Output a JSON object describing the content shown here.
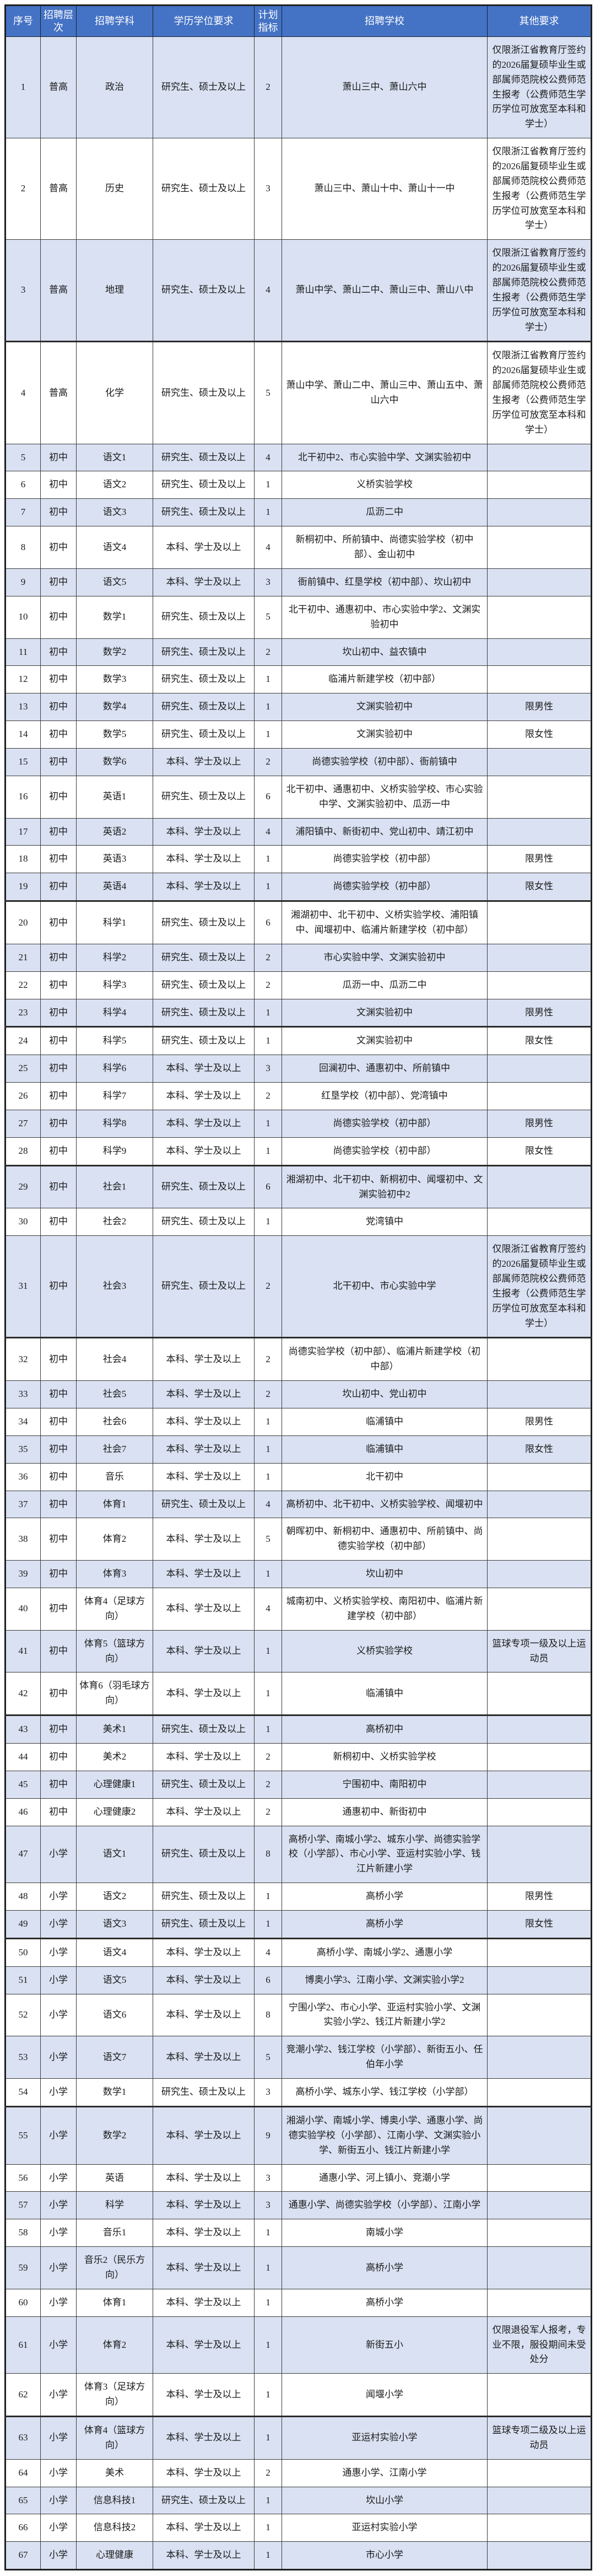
{
  "colors": {
    "header_bg": "#4472C4",
    "band_bg": "#D9E1F2"
  },
  "table": {
    "headers": [
      "序号",
      "招聘层次",
      "招聘学科",
      "学历学位要求",
      "计划指标",
      "招聘学校",
      "其他要求"
    ],
    "note_gongfei": "仅限浙江省教育厅签约的2026届复硕毕业生或部属师范院校公费师范生报考（公费师范生学历学位可放宽至本科和学士）",
    "rows": [
      {
        "no": "1",
        "level": "普高",
        "subject": "政治",
        "degree": "研究生、硕士及以上",
        "quota": "2",
        "schools": "萧山三中、萧山六中",
        "other": "仅限浙江省教育厅签约的2026届复硕毕业生或部属师范院校公费师范生报考（公费师范生学历学位可放宽至本科和学士）"
      },
      {
        "no": "2",
        "level": "普高",
        "subject": "历史",
        "degree": "研究生、硕士及以上",
        "quota": "3",
        "schools": "萧山三中、萧山十中、萧山十一中",
        "other": "仅限浙江省教育厅签约的2026届复硕毕业生或部属师范院校公费师范生报考（公费师范生学历学位可放宽至本科和学士）"
      },
      {
        "no": "3",
        "level": "普高",
        "subject": "地理",
        "degree": "研究生、硕士及以上",
        "quota": "4",
        "schools": "萧山中学、萧山二中、萧山三中、萧山八中",
        "other": "仅限浙江省教育厅签约的2026届复硕毕业生或部属师范院校公费师范生报考（公费师范生学历学位可放宽至本科和学士）"
      },
      {
        "no": "4",
        "level": "普高",
        "subject": "化学",
        "degree": "研究生、硕士及以上",
        "quota": "5",
        "schools": "萧山中学、萧山二中、萧山三中、萧山五中、萧山六中",
        "other": "仅限浙江省教育厅签约的2026届复硕毕业生或部属师范院校公费师范生报考（公费师范生学历学位可放宽至本科和学士）"
      },
      {
        "no": "5",
        "level": "初中",
        "subject": "语文1",
        "degree": "研究生、硕士及以上",
        "quota": "4",
        "schools": "北干初中2、市心实验中学、文渊实验初中",
        "other": ""
      },
      {
        "no": "6",
        "level": "初中",
        "subject": "语文2",
        "degree": "研究生、硕士及以上",
        "quota": "1",
        "schools": "义桥实验学校",
        "other": ""
      },
      {
        "no": "7",
        "level": "初中",
        "subject": "语文3",
        "degree": "研究生、硕士及以上",
        "quota": "1",
        "schools": "瓜沥二中",
        "other": ""
      },
      {
        "no": "8",
        "level": "初中",
        "subject": "语文4",
        "degree": "本科、学士及以上",
        "quota": "4",
        "schools": "新桐初中、所前镇中、尚德实验学校（初中部）、金山初中",
        "other": ""
      },
      {
        "no": "9",
        "level": "初中",
        "subject": "语文5",
        "degree": "本科、学士及以上",
        "quota": "3",
        "schools": "衙前镇中、红垦学校（初中部）、坎山初中",
        "other": ""
      },
      {
        "no": "10",
        "level": "初中",
        "subject": "数学1",
        "degree": "研究生、硕士及以上",
        "quota": "5",
        "schools": "北干初中、通惠初中、市心实验中学2、文渊实验初中",
        "other": ""
      },
      {
        "no": "11",
        "level": "初中",
        "subject": "数学2",
        "degree": "研究生、硕士及以上",
        "quota": "2",
        "schools": "坎山初中、益农镇中",
        "other": ""
      },
      {
        "no": "12",
        "level": "初中",
        "subject": "数学3",
        "degree": "研究生、硕士及以上",
        "quota": "1",
        "schools": "临浦片新建学校（初中部）",
        "other": ""
      },
      {
        "no": "13",
        "level": "初中",
        "subject": "数学4",
        "degree": "研究生、硕士及以上",
        "quota": "1",
        "schools": "文渊实验初中",
        "other": "限男性"
      },
      {
        "no": "14",
        "level": "初中",
        "subject": "数学5",
        "degree": "研究生、硕士及以上",
        "quota": "1",
        "schools": "文渊实验初中",
        "other": "限女性"
      },
      {
        "no": "15",
        "level": "初中",
        "subject": "数学6",
        "degree": "本科、学士及以上",
        "quota": "2",
        "schools": "尚德实验学校（初中部）、衙前镇中",
        "other": ""
      },
      {
        "no": "16",
        "level": "初中",
        "subject": "英语1",
        "degree": "研究生、硕士及以上",
        "quota": "6",
        "schools": "北干初中、通惠初中、义桥实验学校、市心实验中学、文渊实验初中、瓜沥一中",
        "other": ""
      },
      {
        "no": "17",
        "level": "初中",
        "subject": "英语2",
        "degree": "本科、学士及以上",
        "quota": "4",
        "schools": "浦阳镇中、新街初中、党山初中、靖江初中",
        "other": ""
      },
      {
        "no": "18",
        "level": "初中",
        "subject": "英语3",
        "degree": "本科、学士及以上",
        "quota": "1",
        "schools": "尚德实验学校（初中部）",
        "other": "限男性"
      },
      {
        "no": "19",
        "level": "初中",
        "subject": "英语4",
        "degree": "本科、学士及以上",
        "quota": "1",
        "schools": "尚德实验学校（初中部）",
        "other": "限女性"
      },
      {
        "no": "20",
        "level": "初中",
        "subject": "科学1",
        "degree": "研究生、硕士及以上",
        "quota": "6",
        "schools": "湘湖初中、北干初中、义桥实验学校、浦阳镇中、闻堰初中、临浦片新建学校（初中部）",
        "other": ""
      },
      {
        "no": "21",
        "level": "初中",
        "subject": "科学2",
        "degree": "研究生、硕士及以上",
        "quota": "2",
        "schools": "市心实验中学、文渊实验初中",
        "other": ""
      },
      {
        "no": "22",
        "level": "初中",
        "subject": "科学3",
        "degree": "研究生、硕士及以上",
        "quota": "2",
        "schools": "瓜沥一中、瓜沥二中",
        "other": ""
      },
      {
        "no": "23",
        "level": "初中",
        "subject": "科学4",
        "degree": "研究生、硕士及以上",
        "quota": "1",
        "schools": "文渊实验初中",
        "other": "限男性"
      },
      {
        "no": "24",
        "level": "初中",
        "subject": "科学5",
        "degree": "研究生、硕士及以上",
        "quota": "1",
        "schools": "文渊实验初中",
        "other": "限女性"
      },
      {
        "no": "25",
        "level": "初中",
        "subject": "科学6",
        "degree": "本科、学士及以上",
        "quota": "3",
        "schools": "回澜初中、通惠初中、所前镇中",
        "other": ""
      },
      {
        "no": "26",
        "level": "初中",
        "subject": "科学7",
        "degree": "本科、学士及以上",
        "quota": "2",
        "schools": "红垦学校（初中部）、党湾镇中",
        "other": ""
      },
      {
        "no": "27",
        "level": "初中",
        "subject": "科学8",
        "degree": "本科、学士及以上",
        "quota": "1",
        "schools": "尚德实验学校（初中部）",
        "other": "限男性"
      },
      {
        "no": "28",
        "level": "初中",
        "subject": "科学9",
        "degree": "本科、学士及以上",
        "quota": "1",
        "schools": "尚德实验学校（初中部）",
        "other": "限女性"
      },
      {
        "no": "29",
        "level": "初中",
        "subject": "社会1",
        "degree": "研究生、硕士及以上",
        "quota": "6",
        "schools": "湘湖初中、北干初中、新桐初中、闻堰初中、文渊实验初中2",
        "other": ""
      },
      {
        "no": "30",
        "level": "初中",
        "subject": "社会2",
        "degree": "研究生、硕士及以上",
        "quota": "1",
        "schools": "党湾镇中",
        "other": ""
      },
      {
        "no": "31",
        "level": "初中",
        "subject": "社会3",
        "degree": "研究生、硕士及以上",
        "quota": "2",
        "schools": "北干初中、市心实验中学",
        "other": "仅限浙江省教育厅签约的2026届复硕毕业生或部属师范院校公费师范生报考（公费师范生学历学位可放宽至本科和学士）"
      },
      {
        "no": "32",
        "level": "初中",
        "subject": "社会4",
        "degree": "本科、学士及以上",
        "quota": "2",
        "schools": "尚德实验学校（初中部）、临浦片新建学校（初中部）",
        "other": ""
      },
      {
        "no": "33",
        "level": "初中",
        "subject": "社会5",
        "degree": "本科、学士及以上",
        "quota": "2",
        "schools": "坎山初中、党山初中",
        "other": ""
      },
      {
        "no": "34",
        "level": "初中",
        "subject": "社会6",
        "degree": "本科、学士及以上",
        "quota": "1",
        "schools": "临浦镇中",
        "other": "限男性"
      },
      {
        "no": "35",
        "level": "初中",
        "subject": "社会7",
        "degree": "本科、学士及以上",
        "quota": "1",
        "schools": "临浦镇中",
        "other": "限女性"
      },
      {
        "no": "36",
        "level": "初中",
        "subject": "音乐",
        "degree": "本科、学士及以上",
        "quota": "1",
        "schools": "北干初中",
        "other": ""
      },
      {
        "no": "37",
        "level": "初中",
        "subject": "体育1",
        "degree": "研究生、硕士及以上",
        "quota": "4",
        "schools": "高桥初中、北干初中、义桥实验学校、闻堰初中",
        "other": ""
      },
      {
        "no": "38",
        "level": "初中",
        "subject": "体育2",
        "degree": "本科、学士及以上",
        "quota": "5",
        "schools": "朝晖初中、新桐初中、通惠初中、所前镇中、尚德实验学校（初中部）",
        "other": ""
      },
      {
        "no": "39",
        "level": "初中",
        "subject": "体育3",
        "degree": "本科、学士及以上",
        "quota": "1",
        "schools": "坎山初中",
        "other": ""
      },
      {
        "no": "40",
        "level": "初中",
        "subject": "体育4（足球方向）",
        "degree": "本科、学士及以上",
        "quota": "4",
        "schools": "城南初中、义桥实验学校、南阳初中、临浦片新建学校（初中部）",
        "other": ""
      },
      {
        "no": "41",
        "level": "初中",
        "subject": "体育5（篮球方向）",
        "degree": "本科、学士及以上",
        "quota": "1",
        "schools": "义桥实验学校",
        "other": "篮球专项一级及以上运动员"
      },
      {
        "no": "42",
        "level": "初中",
        "subject": "体育6（羽毛球方向）",
        "degree": "本科、学士及以上",
        "quota": "1",
        "schools": "临浦镇中",
        "other": ""
      },
      {
        "no": "43",
        "level": "初中",
        "subject": "美术1",
        "degree": "研究生、硕士及以上",
        "quota": "1",
        "schools": "高桥初中",
        "other": ""
      },
      {
        "no": "44",
        "level": "初中",
        "subject": "美术2",
        "degree": "本科、学士及以上",
        "quota": "2",
        "schools": "新桐初中、义桥实验学校",
        "other": ""
      },
      {
        "no": "45",
        "level": "初中",
        "subject": "心理健康1",
        "degree": "研究生、硕士及以上",
        "quota": "2",
        "schools": "宁围初中、南阳初中",
        "other": ""
      },
      {
        "no": "46",
        "level": "初中",
        "subject": "心理健康2",
        "degree": "本科、学士及以上",
        "quota": "2",
        "schools": "通惠初中、新街初中",
        "other": ""
      },
      {
        "no": "47",
        "level": "小学",
        "subject": "语文1",
        "degree": "研究生、硕士及以上",
        "quota": "8",
        "schools": "高桥小学、南城小学2、城东小学、尚德实验学校（小学部）、市心小学、亚运村实验小学、钱江片新建小学",
        "other": ""
      },
      {
        "no": "48",
        "level": "小学",
        "subject": "语文2",
        "degree": "研究生、硕士及以上",
        "quota": "1",
        "schools": "高桥小学",
        "other": "限男性"
      },
      {
        "no": "49",
        "level": "小学",
        "subject": "语文3",
        "degree": "研究生、硕士及以上",
        "quota": "1",
        "schools": "高桥小学",
        "other": "限女性"
      },
      {
        "no": "50",
        "level": "小学",
        "subject": "语文4",
        "degree": "本科、学士及以上",
        "quota": "4",
        "schools": "高桥小学、南城小学2、通惠小学",
        "other": ""
      },
      {
        "no": "51",
        "level": "小学",
        "subject": "语文5",
        "degree": "本科、学士及以上",
        "quota": "6",
        "schools": "博奥小学3、江南小学、文渊实验小学2",
        "other": ""
      },
      {
        "no": "52",
        "level": "小学",
        "subject": "语文6",
        "degree": "本科、学士及以上",
        "quota": "8",
        "schools": "宁围小学2、市心小学、亚运村实验小学、文渊实验小学2、钱江片新建小学2",
        "other": ""
      },
      {
        "no": "53",
        "level": "小学",
        "subject": "语文7",
        "degree": "本科、学士及以上",
        "quota": "5",
        "schools": "竞潮小学2、钱江学校（小学部）、新街五小、任伯年小学",
        "other": ""
      },
      {
        "no": "54",
        "level": "小学",
        "subject": "数学1",
        "degree": "研究生、硕士及以上",
        "quota": "3",
        "schools": "高桥小学、城东小学、钱江学校（小学部）",
        "other": ""
      },
      {
        "no": "55",
        "level": "小学",
        "subject": "数学2",
        "degree": "本科、学士及以上",
        "quota": "9",
        "schools": "湘湖小学、南城小学、博奥小学、通惠小学、尚德实验学校（小学部）、江南小学、文渊实验小学、新街五小、钱江片新建小学",
        "other": ""
      },
      {
        "no": "56",
        "level": "小学",
        "subject": "英语",
        "degree": "本科、学士及以上",
        "quota": "3",
        "schools": "通惠小学、河上镇小、竞潮小学",
        "other": ""
      },
      {
        "no": "57",
        "level": "小学",
        "subject": "科学",
        "degree": "本科、学士及以上",
        "quota": "3",
        "schools": "通惠小学、尚德实验学校（小学部）、江南小学",
        "other": ""
      },
      {
        "no": "58",
        "level": "小学",
        "subject": "音乐1",
        "degree": "本科、学士及以上",
        "quota": "1",
        "schools": "南城小学",
        "other": ""
      },
      {
        "no": "59",
        "level": "小学",
        "subject": "音乐2（民乐方向）",
        "degree": "本科、学士及以上",
        "quota": "1",
        "schools": "高桥小学",
        "other": ""
      },
      {
        "no": "60",
        "level": "小学",
        "subject": "体育1",
        "degree": "本科、学士及以上",
        "quota": "1",
        "schools": "高桥小学",
        "other": ""
      },
      {
        "no": "61",
        "level": "小学",
        "subject": "体育2",
        "degree": "本科、学士及以上",
        "quota": "1",
        "schools": "新街五小",
        "other": "仅限退役军人报考，专业不限，服役期间未受处分"
      },
      {
        "no": "62",
        "level": "小学",
        "subject": "体育3（足球方向）",
        "degree": "本科、学士及以上",
        "quota": "1",
        "schools": "闻堰小学",
        "other": ""
      },
      {
        "no": "63",
        "level": "小学",
        "subject": "体育4（篮球方向）",
        "degree": "本科、学士及以上",
        "quota": "1",
        "schools": "亚运村实验小学",
        "other": "篮球专项二级及以上运动员"
      },
      {
        "no": "64",
        "level": "小学",
        "subject": "美术",
        "degree": "本科、学士及以上",
        "quota": "2",
        "schools": "通惠小学、江南小学",
        "other": ""
      },
      {
        "no": "65",
        "level": "小学",
        "subject": "信息科技1",
        "degree": "研究生、硕士及以上",
        "quota": "1",
        "schools": "坎山小学",
        "other": ""
      },
      {
        "no": "66",
        "level": "小学",
        "subject": "信息科技2",
        "degree": "本科、学士及以上",
        "quota": "1",
        "schools": "亚运村实验小学",
        "other": ""
      },
      {
        "no": "67",
        "level": "小学",
        "subject": "心理健康",
        "degree": "本科、学士及以上",
        "quota": "1",
        "schools": "市心小学",
        "other": ""
      }
    ]
  }
}
